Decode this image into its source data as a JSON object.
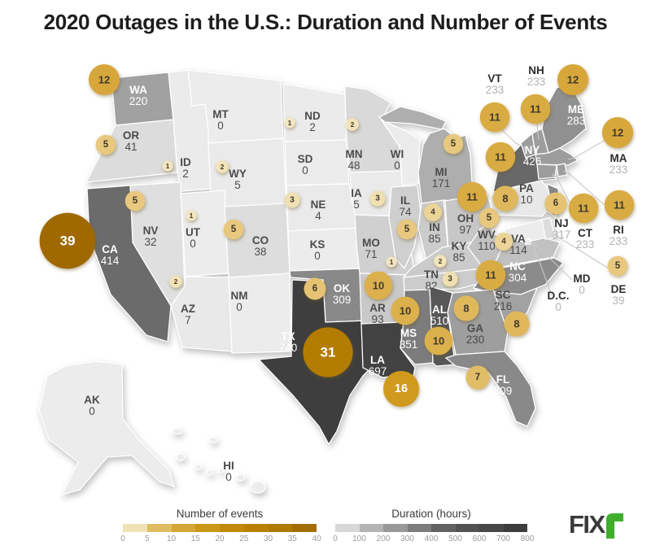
{
  "title": "2020 Outages in the U.S.: Duration and Number of Events",
  "chart_data": {
    "type": "heatmap",
    "subtype": "us-choropleth-map-with-proportional-symbols",
    "title": "2020 Outages in the U.S.: Duration and Number of Events",
    "series": [
      {
        "name": "Duration (hours)",
        "encoding": "state gray fill",
        "range": [
          0,
          800
        ]
      },
      {
        "name": "Number of events",
        "encoding": "gold bubble size/color",
        "range": [
          0,
          40
        ]
      }
    ],
    "states": [
      {
        "id": "WA",
        "abbr": "WA",
        "duration_hours": 220,
        "events": 12
      },
      {
        "id": "OR",
        "abbr": "OR",
        "duration_hours": 41,
        "events": 5
      },
      {
        "id": "CA",
        "abbr": "CA",
        "duration_hours": 414,
        "events": 39
      },
      {
        "id": "NV",
        "abbr": "NV",
        "duration_hours": 32,
        "events": 5
      },
      {
        "id": "ID",
        "abbr": "ID",
        "duration_hours": 2,
        "events": 1
      },
      {
        "id": "MT",
        "abbr": "MT",
        "duration_hours": 0,
        "events": null
      },
      {
        "id": "WY",
        "abbr": "WY",
        "duration_hours": 5,
        "events": 2
      },
      {
        "id": "UT",
        "abbr": "UT",
        "duration_hours": 0,
        "events": 1
      },
      {
        "id": "CO",
        "abbr": "CO",
        "duration_hours": 38,
        "events": 5
      },
      {
        "id": "AZ",
        "abbr": "AZ",
        "duration_hours": 7,
        "events": 2
      },
      {
        "id": "NM",
        "abbr": "NM",
        "duration_hours": 0,
        "events": null
      },
      {
        "id": "ND",
        "abbr": "ND",
        "duration_hours": 2,
        "events": 1
      },
      {
        "id": "SD",
        "abbr": "SD",
        "duration_hours": 0,
        "events": null
      },
      {
        "id": "NE",
        "abbr": "NE",
        "duration_hours": 4,
        "events": 3
      },
      {
        "id": "KS",
        "abbr": "KS",
        "duration_hours": 0,
        "events": null
      },
      {
        "id": "OK",
        "abbr": "OK",
        "duration_hours": 309,
        "events": 6
      },
      {
        "id": "TX",
        "abbr": "TX",
        "duration_hours": 740,
        "events": 31
      },
      {
        "id": "MN",
        "abbr": "MN",
        "duration_hours": 48,
        "events": 2
      },
      {
        "id": "IA",
        "abbr": "IA",
        "duration_hours": 5,
        "events": 3
      },
      {
        "id": "MO",
        "abbr": "MO",
        "duration_hours": 71,
        "events": 1
      },
      {
        "id": "AR",
        "abbr": "AR",
        "duration_hours": 93,
        "events": 10
      },
      {
        "id": "LA",
        "abbr": "LA",
        "duration_hours": 697,
        "events": 16
      },
      {
        "id": "WI",
        "abbr": "WI",
        "duration_hours": 0,
        "events": null
      },
      {
        "id": "IL",
        "abbr": "IL",
        "duration_hours": 74,
        "events": 5
      },
      {
        "id": "MI",
        "abbr": "MI",
        "duration_hours": 171,
        "events": 5
      },
      {
        "id": "IN",
        "abbr": "IN",
        "duration_hours": 85,
        "events": 4
      },
      {
        "id": "OH",
        "abbr": "OH",
        "duration_hours": 97,
        "events": 11
      },
      {
        "id": "KY",
        "abbr": "KY",
        "duration_hours": 85,
        "events": 2
      },
      {
        "id": "TN",
        "abbr": "TN",
        "duration_hours": 82,
        "events": 3
      },
      {
        "id": "MS",
        "abbr": "MS",
        "duration_hours": 351,
        "events": 10
      },
      {
        "id": "AL",
        "abbr": "AL",
        "duration_hours": 510,
        "events": 10
      },
      {
        "id": "GA",
        "abbr": "GA",
        "duration_hours": 230,
        "events": 8
      },
      {
        "id": "FL",
        "abbr": "FL",
        "duration_hours": 309,
        "events": 7
      },
      {
        "id": "SC",
        "abbr": "SC",
        "duration_hours": 216,
        "events": 8
      },
      {
        "id": "NC",
        "abbr": "NC",
        "duration_hours": 304,
        "events": 11
      },
      {
        "id": "VA",
        "abbr": "VA",
        "duration_hours": 114,
        "events": 4
      },
      {
        "id": "WV",
        "abbr": "WV",
        "duration_hours": 110,
        "events": 5
      },
      {
        "id": "PA",
        "abbr": "PA",
        "duration_hours": 10,
        "events": 8
      },
      {
        "id": "NY",
        "abbr": "NY",
        "duration_hours": 426,
        "events": 11
      },
      {
        "id": "NJ",
        "abbr": "NJ",
        "duration_hours": 317,
        "events": 6
      },
      {
        "id": "DE",
        "abbr": "DE",
        "duration_hours": 39,
        "events": 5
      },
      {
        "id": "MD",
        "abbr": "MD",
        "duration_hours": 0,
        "events": null
      },
      {
        "id": "DC",
        "abbr": "D.C.",
        "duration_hours": 0,
        "events": null
      },
      {
        "id": "CT",
        "abbr": "CT",
        "duration_hours": 233,
        "events": 11
      },
      {
        "id": "RI",
        "abbr": "RI",
        "duration_hours": 233,
        "events": 11
      },
      {
        "id": "MA",
        "abbr": "MA",
        "duration_hours": 233,
        "events": 12
      },
      {
        "id": "VT",
        "abbr": "VT",
        "duration_hours": 233,
        "events": 11
      },
      {
        "id": "NH",
        "abbr": "NH",
        "duration_hours": 233,
        "events": 11
      },
      {
        "id": "ME",
        "abbr": "ME",
        "duration_hours": 283,
        "events": 12
      },
      {
        "id": "AK",
        "abbr": "AK",
        "duration_hours": 0,
        "events": null
      },
      {
        "id": "HI",
        "abbr": "HI",
        "duration_hours": 0,
        "events": null
      }
    ]
  },
  "legend_events": {
    "title": "Number of events",
    "ticks": [
      0,
      5,
      10,
      15,
      20,
      25,
      30,
      35,
      40
    ]
  },
  "legend_duration": {
    "title": "Duration (hours)",
    "ticks": [
      0,
      100,
      200,
      300,
      400,
      500,
      600,
      700,
      800
    ]
  },
  "logo": {
    "text": "FIX",
    "mark": "r",
    "mark_color": "#3eae2b"
  },
  "colors": {
    "background": "#ffffff",
    "title_text": "#1d1d1d",
    "label_dark": "#4b4b4b",
    "label_light": "#ffffff",
    "outside_abbr": "#2d2d2d",
    "outside_hours": "#b3b3b3",
    "leader_line": "#c9c9c9",
    "bubble_text_dark": "#3f3a2b",
    "bubble_text_light": "#ffffff",
    "duration_scale_min": "#ececec",
    "duration_scale_max": "#373737",
    "events_scale_min": "#f5e9c8",
    "events_scale_max": "#9e6700"
  }
}
